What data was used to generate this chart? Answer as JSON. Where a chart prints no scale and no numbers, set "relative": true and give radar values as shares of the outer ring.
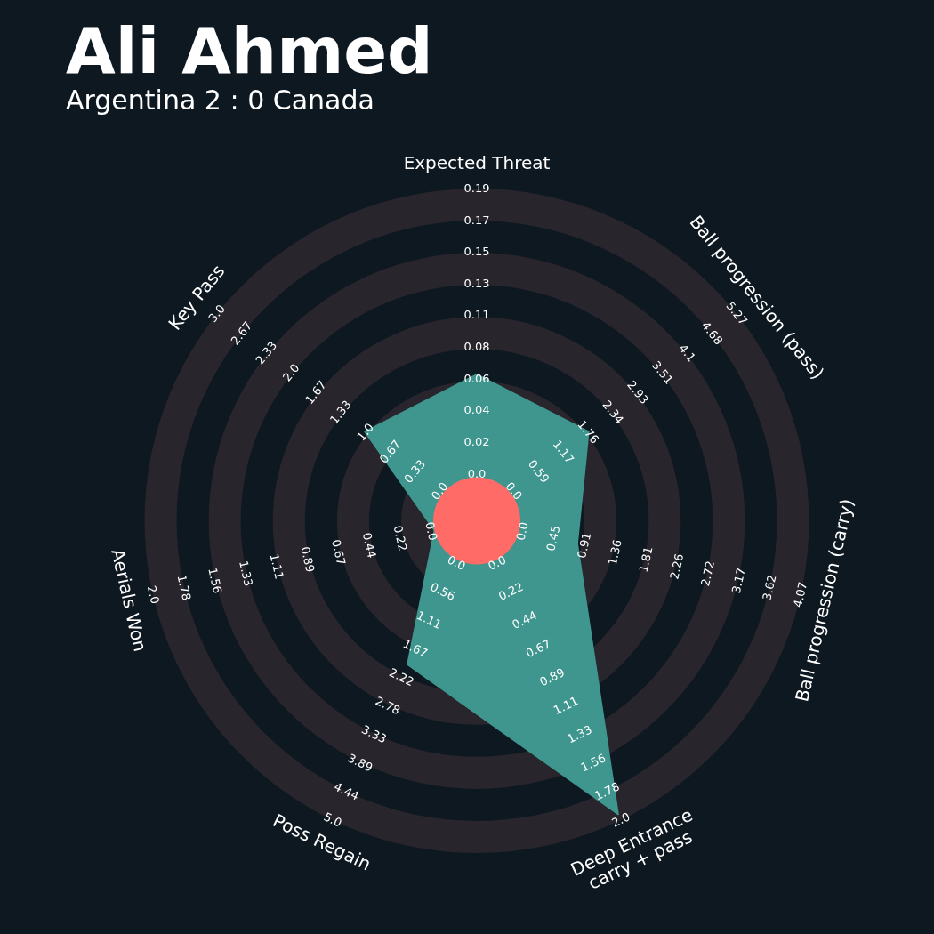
{
  "chart_data": {
    "type": "radar",
    "title": "Ali Ahmed",
    "subtitle": "Argentina 2 : 0 Canada",
    "categories": [
      "Expected Threat",
      "Ball progression (pass)",
      "Ball progression (carry)",
      "Deep Entrance\ncarry + pass",
      "Poss Regain",
      "Aerials Won",
      "Key Pass"
    ],
    "relative": true,
    "grid": true,
    "series": [
      {
        "color": "#3f968f",
        "values": [
          0.44,
          0.43,
          0.31,
          0.98,
          0.48,
          0.13,
          0.43
        ]
      }
    ],
    "annotations": [
      "0.0",
      "0.02",
      "0.04",
      "0.06",
      "0.08",
      "0.11",
      "0.13",
      "0.15",
      "0.17",
      "0.19",
      "0.0",
      "0.59",
      "1.17",
      "1.76",
      "2.34",
      "2.93",
      "3.51",
      "4.1",
      "4.68",
      "5.27",
      "0.0",
      "0.45",
      "0.91",
      "1.36",
      "1.81",
      "2.26",
      "2.72",
      "3.17",
      "3.62",
      "4.07",
      "0.0",
      "0.22",
      "0.44",
      "0.67",
      "0.89",
      "1.11",
      "1.33",
      "1.56",
      "1.78",
      "2.0",
      "0.0",
      "0.56",
      "1.11",
      "1.67",
      "2.22",
      "2.78",
      "3.33",
      "3.89",
      "4.44",
      "5.0",
      "0.0",
      "0.22",
      "0.44",
      "0.67",
      "0.89",
      "1.11",
      "1.33",
      "1.56",
      "1.78",
      "2.0",
      "0.0",
      "0.33",
      "0.67",
      "1.0",
      "1.33",
      "1.67",
      "2.0",
      "2.33",
      "2.67",
      "3.0"
    ]
  }
}
